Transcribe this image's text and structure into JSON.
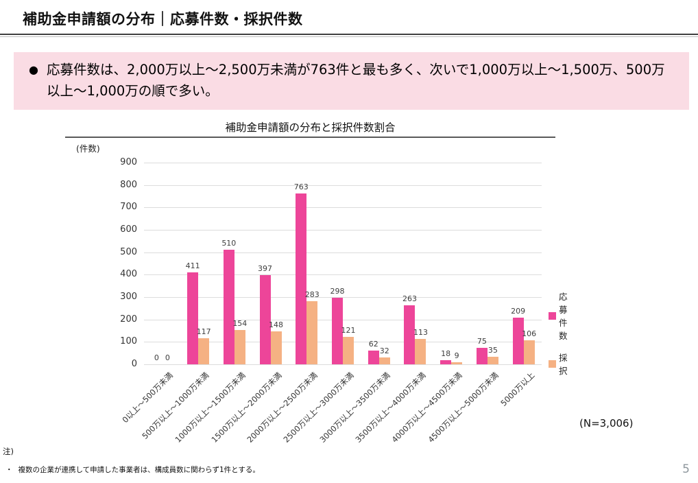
{
  "page": {
    "title": "補助金申請額の分布｜応募件数・採択件数",
    "page_number": "5"
  },
  "summary_box": {
    "bullet": "●",
    "text": "応募件数は、2,000万以上～2,500万未満が763件と最も多く、次いで1,000万以上～1,500万、500万以上～1,000万の順で多い。",
    "background_color": "#fadce4"
  },
  "chart_data": {
    "type": "bar",
    "title": "補助金申請額の分布と採択件数割合",
    "unit_label": "(件数)",
    "categories": [
      "0以上～500万未満",
      "500万以上～1000万未満",
      "1000万以上～1500万未満",
      "1500万以上～2000万未満",
      "2000万以上～2500万未満",
      "2500万以上～3000万未満",
      "3000万以上～3500万未満",
      "3500万以上～4000万未満",
      "4000万以上～4500万未満",
      "4500万以上～5000万未満",
      "5000万以上"
    ],
    "series": [
      {
        "name": "応募件数",
        "color": "#ED4599",
        "values": [
          0,
          411,
          510,
          397,
          763,
          298,
          62,
          263,
          18,
          75,
          209
        ]
      },
      {
        "name": "採択",
        "color": "#F5B183",
        "values": [
          0,
          117,
          154,
          148,
          283,
          121,
          32,
          113,
          9,
          35,
          106
        ]
      }
    ],
    "ylim": [
      0,
      900
    ],
    "ytick_step": 100,
    "grid": true,
    "legend_position": "right",
    "n_label": "(N=3,006)"
  },
  "footnote": {
    "heading": "注)",
    "bullet": "・",
    "items": [
      "複数の企業が連携して申請した事業者は、構成員数に関わらず1件とする。"
    ]
  }
}
